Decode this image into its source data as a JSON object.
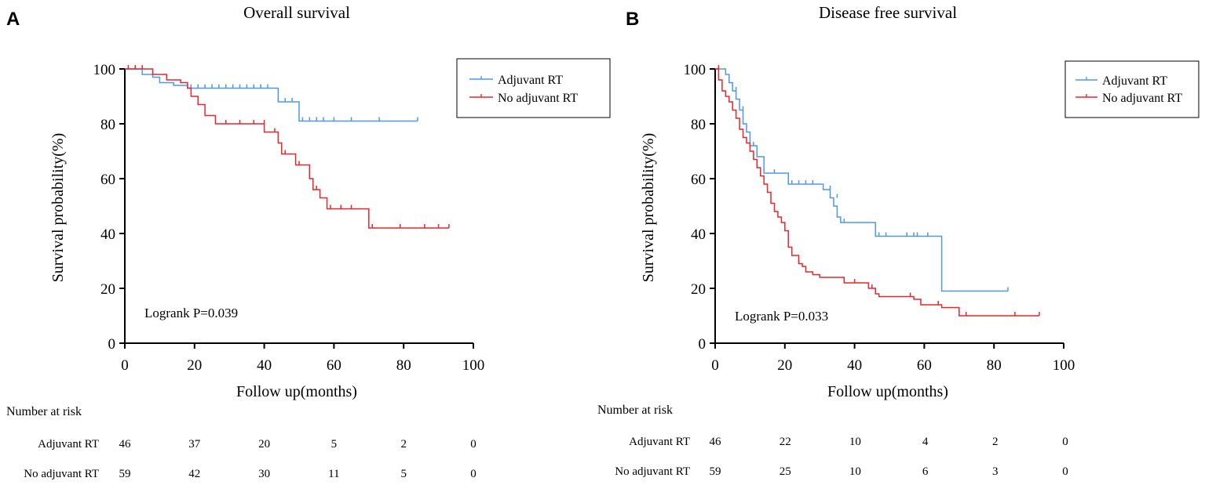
{
  "panels": [
    {
      "letter": "A",
      "title": "Overall survival",
      "logrank": "Logrank P=0.039",
      "risk_title": "Number at risk"
    },
    {
      "letter": "B",
      "title": "Disease free survival",
      "logrank": "Logrank P=0.033",
      "risk_title": "Number at risk"
    }
  ],
  "colors": {
    "adjuvant": "#4f97ee",
    "no_adjuvant": "#e8262c",
    "axis": "#000000"
  },
  "chart_data": [
    {
      "type": "line",
      "step": true,
      "title": "Overall survival",
      "xlabel": "Follow up(months)",
      "ylabel": "Survival probability(%)",
      "xlim": [
        0,
        100
      ],
      "ylim": [
        0,
        100
      ],
      "xticks": [
        0,
        20,
        40,
        60,
        80,
        100
      ],
      "yticks": [
        0,
        20,
        40,
        60,
        80,
        100
      ],
      "legend": [
        "Adjuvant RT",
        "No adjuvant RT"
      ],
      "legend_position": "top-right",
      "series": [
        {
          "name": "Adjuvant RT",
          "key": "adjuvant",
          "steps": [
            [
              0,
              100
            ],
            [
              4,
              100
            ],
            [
              5,
              98
            ],
            [
              8,
              97
            ],
            [
              10,
              95
            ],
            [
              14,
              94
            ],
            [
              18,
              93
            ],
            [
              43,
              93
            ],
            [
              44,
              88
            ],
            [
              49,
              88
            ],
            [
              50,
              81
            ],
            [
              84,
              81
            ]
          ],
          "censors": [
            [
              3,
              100
            ],
            [
              8,
              98
            ],
            [
              19,
              93
            ],
            [
              21,
              93
            ],
            [
              23,
              93
            ],
            [
              25,
              93
            ],
            [
              27,
              93
            ],
            [
              29,
              93
            ],
            [
              31,
              93
            ],
            [
              33,
              93
            ],
            [
              35,
              93
            ],
            [
              37,
              93
            ],
            [
              39,
              93
            ],
            [
              41,
              93
            ],
            [
              44,
              88
            ],
            [
              46,
              88
            ],
            [
              48,
              88
            ],
            [
              51,
              81
            ],
            [
              53,
              81
            ],
            [
              55,
              81
            ],
            [
              57,
              81
            ],
            [
              60,
              81
            ],
            [
              65,
              81
            ],
            [
              73,
              81
            ],
            [
              84,
              81
            ]
          ]
        },
        {
          "name": "No adjuvant RT",
          "key": "no_adjuvant",
          "steps": [
            [
              0,
              100
            ],
            [
              7,
              100
            ],
            [
              8,
              98
            ],
            [
              12,
              96
            ],
            [
              16,
              95
            ],
            [
              18,
              93
            ],
            [
              19,
              90
            ],
            [
              21,
              87
            ],
            [
              23,
              83
            ],
            [
              26,
              80
            ],
            [
              38,
              80
            ],
            [
              40,
              77
            ],
            [
              43,
              77
            ],
            [
              44,
              73
            ],
            [
              45,
              69
            ],
            [
              48,
              69
            ],
            [
              49,
              65
            ],
            [
              52,
              65
            ],
            [
              53,
              60
            ],
            [
              54,
              56
            ],
            [
              56,
              53
            ],
            [
              58,
              49
            ],
            [
              69,
              49
            ],
            [
              70,
              42
            ],
            [
              93,
              42
            ]
          ],
          "censors": [
            [
              1,
              100
            ],
            [
              3,
              100
            ],
            [
              5,
              100
            ],
            [
              29,
              80
            ],
            [
              33,
              80
            ],
            [
              37,
              80
            ],
            [
              40,
              80
            ],
            [
              43,
              77
            ],
            [
              46,
              69
            ],
            [
              50,
              65
            ],
            [
              55,
              56
            ],
            [
              59,
              49
            ],
            [
              62,
              49
            ],
            [
              65,
              49
            ],
            [
              71,
              42
            ],
            [
              79,
              42
            ],
            [
              86,
              42
            ],
            [
              90,
              42
            ],
            [
              93,
              42
            ]
          ]
        }
      ],
      "risk_table": {
        "times": [
          0,
          20,
          40,
          60,
          80,
          100
        ],
        "rows": [
          {
            "label": "Adjuvant RT",
            "values": [
              46,
              37,
              20,
              5,
              2,
              0
            ]
          },
          {
            "label": "No adjuvant RT",
            "values": [
              59,
              42,
              30,
              11,
              5,
              0
            ]
          }
        ]
      }
    },
    {
      "type": "line",
      "step": true,
      "title": "Disease free survival",
      "xlabel": "Follow up(months)",
      "ylabel": "Survival probability(%)",
      "xlim": [
        0,
        100
      ],
      "ylim": [
        0,
        100
      ],
      "xticks": [
        0,
        20,
        40,
        60,
        80,
        100
      ],
      "yticks": [
        0,
        20,
        40,
        60,
        80,
        100
      ],
      "legend": [
        "Adjuvant RT",
        "No adjuvant RT"
      ],
      "legend_position": "top-right",
      "series": [
        {
          "name": "Adjuvant RT",
          "key": "adjuvant",
          "steps": [
            [
              0,
              100
            ],
            [
              2,
              100
            ],
            [
              3,
              98
            ],
            [
              4,
              95
            ],
            [
              5,
              92
            ],
            [
              6,
              89
            ],
            [
              7,
              85
            ],
            [
              8,
              80
            ],
            [
              9,
              77
            ],
            [
              10,
              72
            ],
            [
              12,
              68
            ],
            [
              14,
              62
            ],
            [
              19,
              62
            ],
            [
              21,
              58
            ],
            [
              30,
              58
            ],
            [
              31,
              56
            ],
            [
              33,
              53
            ],
            [
              34,
              50
            ],
            [
              35,
              46
            ],
            [
              36,
              44
            ],
            [
              45,
              44
            ],
            [
              46,
              39
            ],
            [
              64,
              39
            ],
            [
              65,
              19
            ],
            [
              84,
              19
            ]
          ],
          "censors": [
            [
              6,
              92
            ],
            [
              8,
              85
            ],
            [
              11,
              72
            ],
            [
              17,
              62
            ],
            [
              22,
              58
            ],
            [
              24,
              58
            ],
            [
              26,
              58
            ],
            [
              28,
              58
            ],
            [
              33,
              56
            ],
            [
              35,
              53
            ],
            [
              37,
              44
            ],
            [
              47,
              39
            ],
            [
              49,
              39
            ],
            [
              55,
              39
            ],
            [
              57,
              39
            ],
            [
              58,
              39
            ],
            [
              61,
              39
            ],
            [
              84,
              19
            ]
          ]
        },
        {
          "name": "No adjuvant RT",
          "key": "no_adjuvant",
          "steps": [
            [
              0,
              100
            ],
            [
              1,
              96
            ],
            [
              2,
              92
            ],
            [
              3,
              90
            ],
            [
              4,
              88
            ],
            [
              5,
              85
            ],
            [
              6,
              82
            ],
            [
              7,
              78
            ],
            [
              8,
              75
            ],
            [
              9,
              73
            ],
            [
              10,
              70
            ],
            [
              11,
              67
            ],
            [
              12,
              64
            ],
            [
              13,
              61
            ],
            [
              14,
              58
            ],
            [
              15,
              55
            ],
            [
              16,
              51
            ],
            [
              17,
              48
            ],
            [
              18,
              46
            ],
            [
              19,
              44
            ],
            [
              20,
              41
            ],
            [
              21,
              35
            ],
            [
              22,
              32
            ],
            [
              24,
              29
            ],
            [
              25,
              28
            ],
            [
              26,
              26
            ],
            [
              28,
              25
            ],
            [
              30,
              24
            ],
            [
              36,
              24
            ],
            [
              37,
              22
            ],
            [
              43,
              22
            ],
            [
              44,
              20
            ],
            [
              46,
              18
            ],
            [
              47,
              17
            ],
            [
              56,
              17
            ],
            [
              57,
              16
            ],
            [
              59,
              14
            ],
            [
              64,
              14
            ],
            [
              65,
              13
            ],
            [
              69,
              13
            ],
            [
              70,
              10
            ],
            [
              93,
              10
            ]
          ],
          "censors": [
            [
              1,
              100
            ],
            [
              24,
              29
            ],
            [
              40,
              22
            ],
            [
              45,
              20
            ],
            [
              56,
              17
            ],
            [
              64,
              14
            ],
            [
              72,
              10
            ],
            [
              86,
              10
            ],
            [
              93,
              10
            ]
          ]
        }
      ],
      "risk_table": {
        "times": [
          0,
          20,
          40,
          60,
          80,
          100
        ],
        "rows": [
          {
            "label": "Adjuvant RT",
            "values": [
              46,
              22,
              10,
              4,
              2,
              0
            ]
          },
          {
            "label": "No adjuvant RT",
            "values": [
              59,
              25,
              10,
              6,
              3,
              0
            ]
          }
        ]
      }
    }
  ]
}
